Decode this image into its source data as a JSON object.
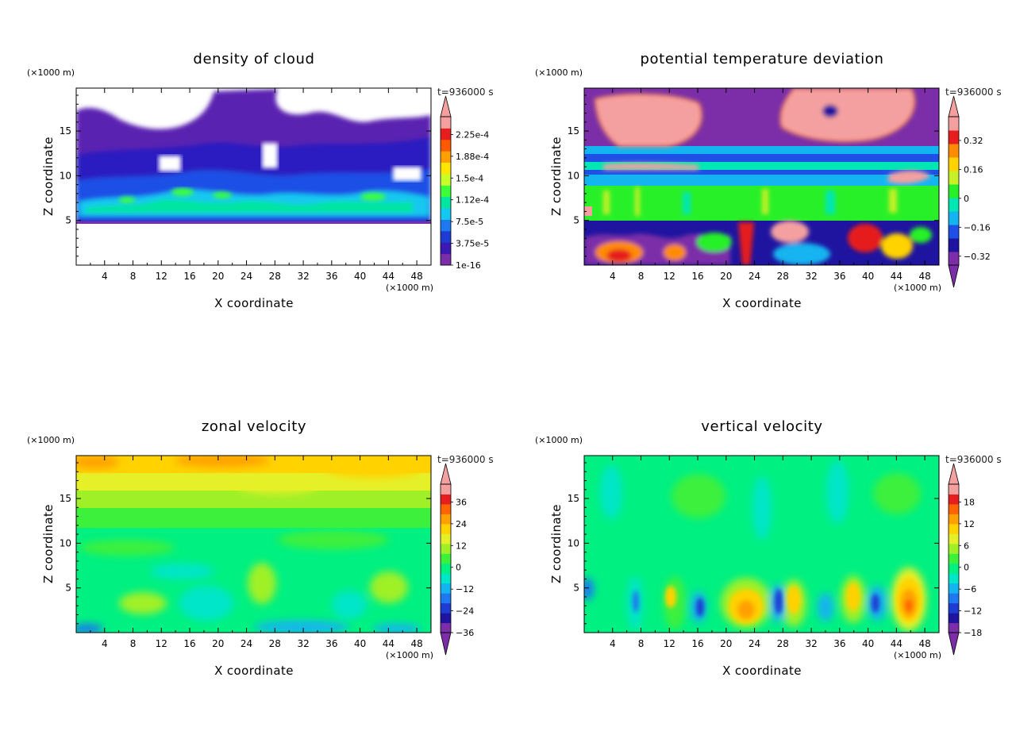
{
  "chart_data": [
    {
      "type": "heatmap",
      "title": "density of cloud",
      "xlabel": "X coordinate",
      "ylabel": "Z coordinate",
      "x_unit": "(×1000 m)",
      "y_unit": "(×1000 m)",
      "time_label": "t=936000 s",
      "xlim": [
        0,
        50
      ],
      "ylim": [
        0,
        19.8
      ],
      "x_ticks": [
        "4",
        "8",
        "12",
        "16",
        "20",
        "24",
        "28",
        "32",
        "36",
        "40",
        "44",
        "48"
      ],
      "y_ticks": [
        "5",
        "10",
        "15"
      ],
      "colorbar": {
        "labels": [
          "2.25e-4",
          "1.88e-4",
          "1.5e-4",
          "1.12e-4",
          "7.5e-5",
          "3.75e-5",
          "1e-16"
        ],
        "colors": [
          "#7b2ea8",
          "#3c18b4",
          "#1e3cd2",
          "#1e78f0",
          "#14c8f0",
          "#00e6a0",
          "#3cff3c",
          "#c8ff28",
          "#ffe600",
          "#ffa000",
          "#ff5a00",
          "#e61e1e",
          "#f5a0a0"
        ],
        "min_arrow": false
      }
    },
    {
      "type": "heatmap",
      "title": "potential temperature deviation",
      "xlabel": "X coordinate",
      "ylabel": "Z coordinate",
      "x_unit": "(×1000 m)",
      "y_unit": "(×1000 m)",
      "time_label": "t=936000 s",
      "xlim": [
        0,
        50
      ],
      "ylim": [
        0,
        19.8
      ],
      "x_ticks": [
        "4",
        "8",
        "12",
        "16",
        "20",
        "24",
        "28",
        "32",
        "36",
        "40",
        "44",
        "48"
      ],
      "y_ticks": [
        "5",
        "10",
        "15"
      ],
      "colorbar": {
        "labels": [
          "0.32",
          "0.16",
          "0",
          "−0.16",
          "−0.32"
        ],
        "colors": [
          "#7b2ea8",
          "#1e14a0",
          "#1e50e6",
          "#14b4f0",
          "#00e6b4",
          "#28f028",
          "#c8f028",
          "#ffd200",
          "#ff8c00",
          "#e61e1e",
          "#f5a0a0"
        ],
        "min_arrow": true
      }
    },
    {
      "type": "heatmap",
      "title": "zonal velocity",
      "xlabel": "X coordinate",
      "ylabel": "Z coordinate",
      "x_unit": "(×1000 m)",
      "y_unit": "(×1000 m)",
      "time_label": "t=936000 s",
      "xlim": [
        0,
        50
      ],
      "ylim": [
        0,
        19.8
      ],
      "x_ticks": [
        "4",
        "8",
        "12",
        "16",
        "20",
        "24",
        "28",
        "32",
        "36",
        "40",
        "44",
        "48"
      ],
      "y_ticks": [
        "5",
        "10",
        "15"
      ],
      "colorbar": {
        "labels": [
          "36",
          "24",
          "12",
          "0",
          "−12",
          "−24",
          "−36"
        ],
        "colors": [
          "#7b2ea8",
          "#1e14a0",
          "#1e3cd2",
          "#1e78f0",
          "#14b4f0",
          "#00e6c8",
          "#00f082",
          "#3cf03c",
          "#a0f028",
          "#e6f028",
          "#ffd200",
          "#ffa000",
          "#ff6400",
          "#e61e1e",
          "#f5a0a0"
        ],
        "min_arrow": true
      }
    },
    {
      "type": "heatmap",
      "title": "vertical velocity",
      "xlabel": "X coordinate",
      "ylabel": "Z coordinate",
      "x_unit": "(×1000 m)",
      "y_unit": "(×1000 m)",
      "time_label": "t=936000 s",
      "xlim": [
        0,
        50
      ],
      "ylim": [
        0,
        19.8
      ],
      "x_ticks": [
        "4",
        "8",
        "12",
        "16",
        "20",
        "24",
        "28",
        "32",
        "36",
        "40",
        "44",
        "48"
      ],
      "y_ticks": [
        "5",
        "10",
        "15"
      ],
      "colorbar": {
        "labels": [
          "18",
          "12",
          "6",
          "0",
          "−6",
          "−12",
          "−18"
        ],
        "colors": [
          "#7b2ea8",
          "#1e14a0",
          "#1e3cd2",
          "#1e78f0",
          "#14b4f0",
          "#00e6c8",
          "#00f082",
          "#3cf03c",
          "#a0f028",
          "#e6f028",
          "#ffd200",
          "#ffa000",
          "#ff6400",
          "#e61e1e",
          "#f5a0a0"
        ],
        "min_arrow": true
      }
    }
  ]
}
